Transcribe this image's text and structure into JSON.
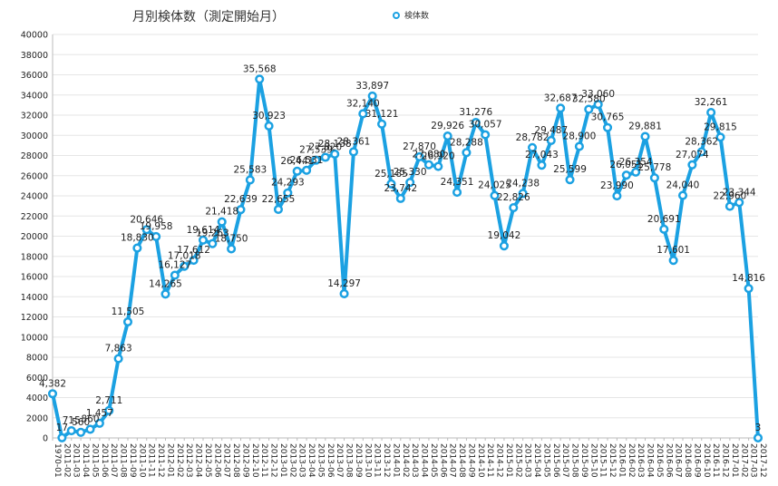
{
  "chart_data": {
    "type": "line",
    "title": "月別検体数（測定開始月）",
    "legend": {
      "label": "検体数",
      "placement": "top-center"
    },
    "color": "#1ba1e2",
    "grid": true,
    "ylim": [
      0,
      40000
    ],
    "yticks": [
      0,
      2000,
      4000,
      6000,
      8000,
      10000,
      12000,
      14000,
      16000,
      18000,
      20000,
      22000,
      24000,
      26000,
      28000,
      30000,
      32000,
      34000,
      36000,
      38000,
      40000
    ],
    "categories": [
      "1970-01",
      "2011-02",
      "2011-03",
      "2011-04",
      "2011-05",
      "2011-06",
      "2011-07",
      "2011-08",
      "2011-09",
      "2011-10",
      "2011-11",
      "2011-12",
      "2012-01",
      "2012-02",
      "2012-03",
      "2012-04",
      "2012-05",
      "2012-06",
      "2012-07",
      "2012-08",
      "2012-09",
      "2012-10",
      "2012-11",
      "2012-12",
      "2013-01",
      "2013-02",
      "2013-03",
      "2013-04",
      "2013-05",
      "2013-06",
      "2013-07",
      "2013-08",
      "2013-09",
      "2013-10",
      "2013-11",
      "2013-12",
      "2014-01",
      "2014-02",
      "2014-03",
      "2014-04",
      "2014-05",
      "2014-06",
      "2014-07",
      "2014-08",
      "2014-09",
      "2014-10",
      "2014-11",
      "2014-12",
      "2015-01",
      "2015-02",
      "2015-03",
      "2015-04",
      "2015-05",
      "2015-06",
      "2015-07",
      "2015-08",
      "2015-09",
      "2015-10",
      "2015-11",
      "2015-12",
      "2016-01",
      "2016-02",
      "2016-03",
      "2016-04",
      "2016-05",
      "2016-06",
      "2016-07",
      "2016-08",
      "2016-09",
      "2016-10",
      "2016-11",
      "2016-12",
      "2017-01",
      "2017-02",
      "2017-03",
      "2017-12"
    ],
    "values": [
      4382,
      17,
      715,
      560,
      860,
      1457,
      2711,
      7863,
      11505,
      18830,
      20646,
      19958,
      14265,
      16127,
      17018,
      17612,
      19614,
      19263,
      21418,
      18750,
      22639,
      25583,
      35568,
      30923,
      22655,
      24293,
      26441,
      26531,
      27539,
      27820,
      28138,
      14297,
      28361,
      32140,
      33897,
      31121,
      25185,
      23742,
      25330,
      27870,
      27080,
      26920,
      29926,
      24351,
      28288,
      31276,
      30057,
      24025,
      19042,
      22826,
      24238,
      28782,
      27043,
      29487,
      32687,
      25599,
      28900,
      32580,
      33060,
      30765,
      23990,
      26051,
      26354,
      29881,
      25778,
      20691,
      17601,
      24040,
      27074,
      28362,
      32261,
      29815,
      22960,
      23344,
      14816,
      3
    ],
    "labels": [
      "4,382",
      "17",
      "715",
      "560",
      "860",
      "1,457",
      "2,711",
      "7,863",
      "11,505",
      "18,830",
      "20,646",
      "19,958",
      "14,265",
      "16,127",
      "17,018",
      "17,612",
      "19,614",
      "19,263",
      "21,418",
      "18,750",
      "22,639",
      "25,583",
      "35,568",
      "30,923",
      "22,655",
      "24,293",
      "26,441",
      "26,531",
      "27,539",
      "27,820",
      "28,138",
      "14,297",
      "28,361",
      "32,140",
      "33,897",
      "31,121",
      "25,185",
      "23,742",
      "25,330",
      "27,870",
      "27,080",
      "26,920",
      "29,926",
      "24,351",
      "28,288",
      "31,276",
      "30,057",
      "24,025",
      "19,042",
      "22,826",
      "24,238",
      "28,782",
      "27,043",
      "29,487",
      "32,687",
      "25,599",
      "28,900",
      "32,580",
      "33,060",
      "30,765",
      "23,990",
      "26,051",
      "26,354",
      "29,881",
      "25,778",
      "20,691",
      "17,601",
      "24,040",
      "27,074",
      "28,362",
      "32,261",
      "29,815",
      "22,960",
      "23,344",
      "14,816",
      "3"
    ]
  }
}
